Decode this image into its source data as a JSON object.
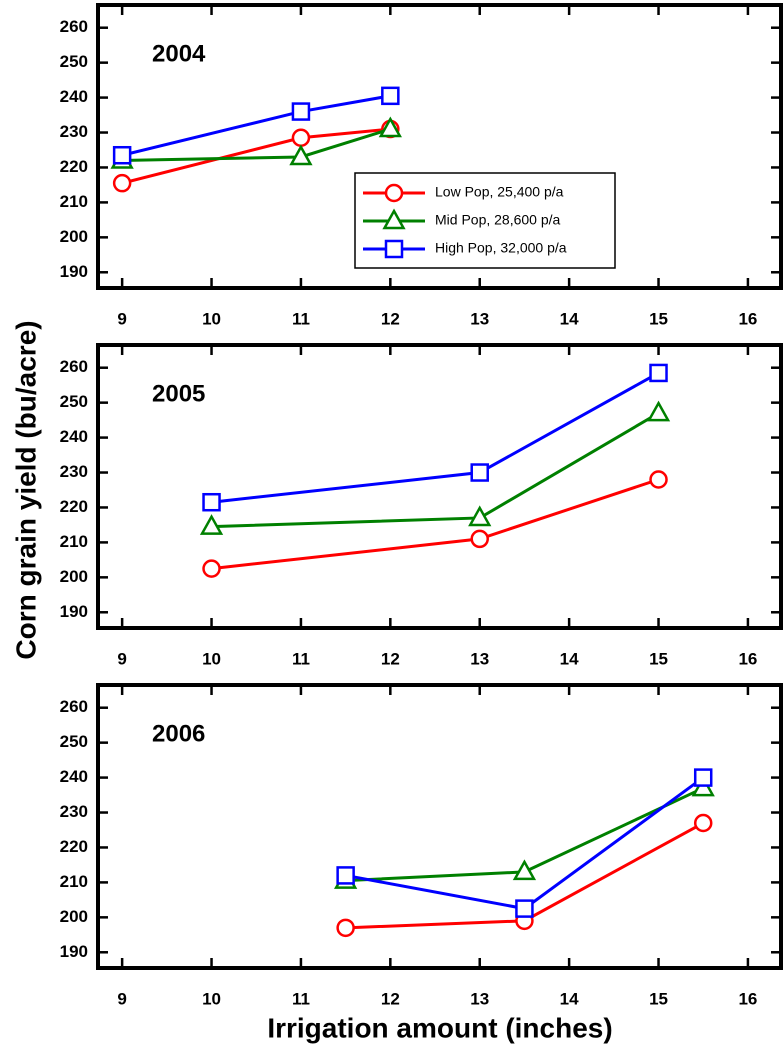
{
  "chart_data": [
    {
      "type": "line",
      "title": "2004",
      "x": [
        9,
        11,
        12
      ],
      "series": [
        {
          "name": "Low Pop, 25,400 p/a",
          "color": "#ff0000",
          "marker": "circle",
          "values": [
            215.5,
            228.5,
            231
          ]
        },
        {
          "name": "Mid Pop, 28,600 p/a",
          "color": "#008000",
          "marker": "triangle",
          "values": [
            222,
            223,
            231
          ]
        },
        {
          "name": "High Pop, 32,000 p/a",
          "color": "#0000ff",
          "marker": "square",
          "values": [
            223.5,
            236,
            240.5
          ]
        }
      ],
      "xlim": [
        8.73,
        16.37
      ],
      "xticks": [
        9,
        10,
        11,
        12,
        13,
        14,
        15,
        16
      ],
      "ylim": [
        185.5,
        266.5
      ],
      "yticks": [
        190,
        200,
        210,
        220,
        230,
        240,
        250,
        260
      ],
      "legend": "lower-right"
    },
    {
      "type": "line",
      "title": "2005",
      "ylabel": "Corn grain yield (bu/acre)",
      "x": [
        10,
        13,
        15
      ],
      "series": [
        {
          "name": "Low Pop, 25,400 p/a",
          "color": "#ff0000",
          "marker": "circle",
          "values": [
            202.5,
            211,
            228
          ]
        },
        {
          "name": "Mid Pop, 28,600 p/a",
          "color": "#008000",
          "marker": "triangle",
          "values": [
            214.5,
            217,
            247
          ]
        },
        {
          "name": "High Pop, 32,000 p/a",
          "color": "#0000ff",
          "marker": "square",
          "values": [
            221.5,
            230,
            258.5
          ]
        }
      ],
      "xlim": [
        8.73,
        16.37
      ],
      "xticks": [
        9,
        10,
        11,
        12,
        13,
        14,
        15,
        16
      ],
      "ylim": [
        185.5,
        266.5
      ],
      "yticks": [
        190,
        200,
        210,
        220,
        230,
        240,
        250,
        260
      ]
    },
    {
      "type": "line",
      "title": "2006",
      "xlabel": "Irrigation amount (inches)",
      "x": [
        11.5,
        13.5,
        15.5
      ],
      "series": [
        {
          "name": "Low Pop, 25,400 p/a",
          "color": "#ff0000",
          "marker": "circle",
          "values": [
            197,
            199,
            227
          ]
        },
        {
          "name": "Mid Pop, 28,600 p/a",
          "color": "#008000",
          "marker": "triangle",
          "values": [
            210.5,
            213,
            237
          ]
        },
        {
          "name": "High Pop, 32,000 p/a",
          "color": "#0000ff",
          "marker": "square",
          "values": [
            212,
            202.5,
            240
          ]
        }
      ],
      "xlim": [
        8.73,
        16.37
      ],
      "xticks": [
        9,
        10,
        11,
        12,
        13,
        14,
        15,
        16
      ],
      "ylim": [
        185.5,
        266.5
      ],
      "yticks": [
        190,
        200,
        210,
        220,
        230,
        240,
        250,
        260
      ]
    }
  ]
}
